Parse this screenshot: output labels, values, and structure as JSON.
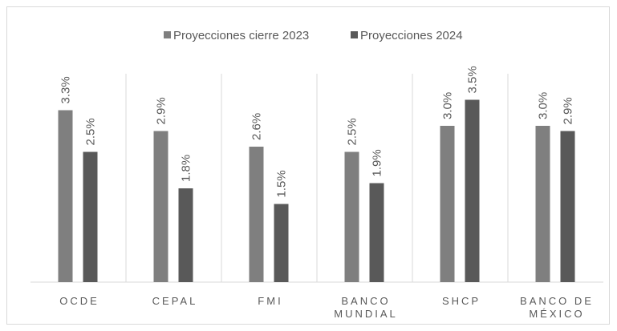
{
  "chart_data": {
    "type": "bar",
    "categories": [
      "OCDE",
      "CEPAL",
      "FMI",
      "BANCO MUNDIAL",
      "SHCP",
      "BANCO DE MÉXICO"
    ],
    "series": [
      {
        "name": "Proyecciones cierre 2023",
        "color": "#7f7f7f",
        "values": [
          3.3,
          2.9,
          2.6,
          2.5,
          3.0,
          3.0
        ],
        "value_labels": [
          "3.3%",
          "2.9%",
          "2.6%",
          "2.5%",
          "3.0%",
          "3.0%"
        ]
      },
      {
        "name": "Proyecciones 2024",
        "color": "#595959",
        "values": [
          2.5,
          1.8,
          1.5,
          1.9,
          3.5,
          2.9
        ],
        "value_labels": [
          "2.5%",
          "1.8%",
          "1.5%",
          "1.9%",
          "3.5%",
          "2.9%"
        ]
      }
    ],
    "ylim": [
      0,
      4
    ],
    "legend": "top"
  }
}
